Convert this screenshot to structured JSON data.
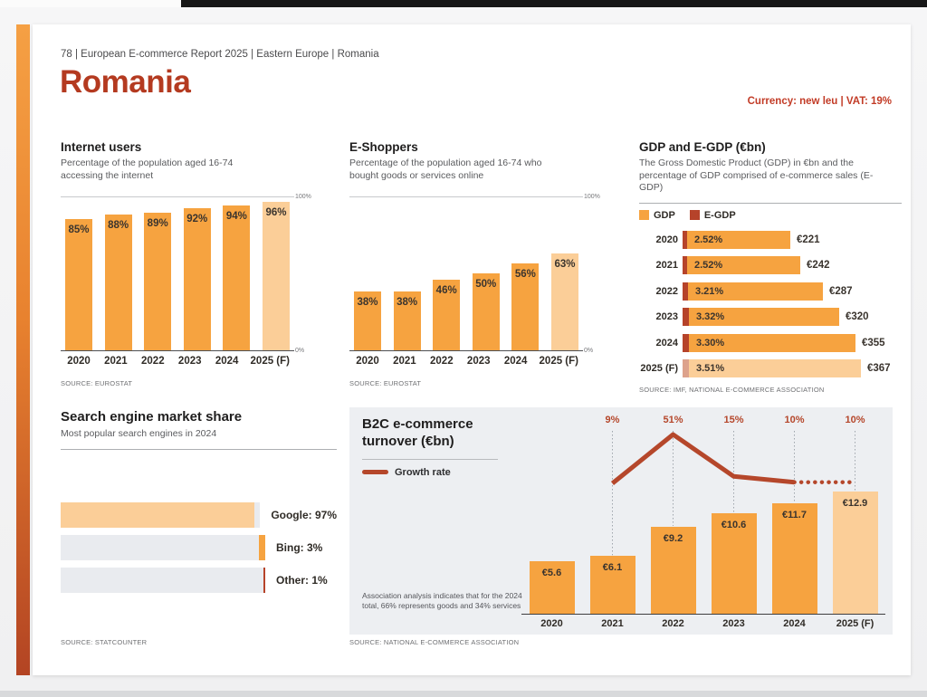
{
  "page": {
    "breadcrumb": "78 | European E-commerce Report 2025 | Eastern Europe | Romania",
    "title": "Romania",
    "currency_vat": "Currency: new leu | VAT: 19%"
  },
  "colors": {
    "orange": "#F6A340",
    "orange_forecast": "#FBCE98",
    "brick_red": "#B6432A",
    "brick_red_forecast": "#DDA28C",
    "growth_line": "#B5472B",
    "gray_track": "#E9EBEF",
    "panel_bg": "#EDEFF2",
    "title_red": "#B43A20"
  },
  "chart_data": [
    {
      "id": "internet_users",
      "type": "bar",
      "title": "Internet users",
      "subtitle": "Percentage of the population aged 16-74 accessing the internet",
      "categories": [
        "2020",
        "2021",
        "2022",
        "2023",
        "2024",
        "2025 (F)"
      ],
      "values": [
        85,
        88,
        89,
        92,
        94,
        96
      ],
      "value_labels": [
        "85%",
        "88%",
        "89%",
        "92%",
        "94%",
        "96%"
      ],
      "ylim": [
        0,
        100
      ],
      "axis_top_label": "100%",
      "axis_bottom_label": "0%",
      "forecast_last_bar": true,
      "source": "SOURCE: EUROSTAT"
    },
    {
      "id": "e_shoppers",
      "type": "bar",
      "title": "E-Shoppers",
      "subtitle": "Percentage of the population aged 16-74 who bought goods or services online",
      "categories": [
        "2020",
        "2021",
        "2022",
        "2023",
        "2024",
        "2025 (F)"
      ],
      "values": [
        38,
        38,
        46,
        50,
        56,
        63
      ],
      "value_labels": [
        "38%",
        "38%",
        "46%",
        "50%",
        "56%",
        "63%"
      ],
      "ylim": [
        0,
        100
      ],
      "axis_top_label": "100%",
      "axis_bottom_label": "0%",
      "forecast_last_bar": true,
      "source": "SOURCE: EUROSTAT"
    },
    {
      "id": "gdp_egdp",
      "type": "bar-horizontal",
      "title": "GDP and E-GDP (€bn)",
      "subtitle": "The Gross Domestic Product (GDP) in €bn and the percentage of GDP comprised of e-commerce sales (E-GDP)",
      "legend": [
        "GDP",
        "E-GDP"
      ],
      "xmax": 367,
      "rows": [
        {
          "year": "2020",
          "egdp_pct": "2.52%",
          "gdp_value": 221,
          "gdp_label": "€221",
          "forecast": false
        },
        {
          "year": "2021",
          "egdp_pct": "2.52%",
          "gdp_value": 242,
          "gdp_label": "€242",
          "forecast": false
        },
        {
          "year": "2022",
          "egdp_pct": "3.21%",
          "gdp_value": 287,
          "gdp_label": "€287",
          "forecast": false
        },
        {
          "year": "2023",
          "egdp_pct": "3.32%",
          "gdp_value": 320,
          "gdp_label": "€320",
          "forecast": false
        },
        {
          "year": "2024",
          "egdp_pct": "3.30%",
          "gdp_value": 355,
          "gdp_label": "€355",
          "forecast": false
        },
        {
          "year": "2025 (F)",
          "egdp_pct": "3.51%",
          "gdp_value": 367,
          "gdp_label": "€367",
          "forecast": true
        }
      ],
      "source": "SOURCE: IMF, NATIONAL E-COMMERCE ASSOCIATION"
    },
    {
      "id": "search_engine_share",
      "type": "bar-horizontal",
      "title": "Search engine market share",
      "subtitle": "Most popular search engines in 2024",
      "rows": [
        {
          "label": "Google: 97%",
          "value": 97,
          "segment": "light-orange",
          "side": "left"
        },
        {
          "label": "Bing: 3%",
          "value": 3,
          "segment": "orange",
          "side": "right"
        },
        {
          "label": "Other: 1%",
          "value": 1,
          "segment": "red",
          "side": "right"
        }
      ],
      "source": "SOURCE: STATCOUNTER"
    },
    {
      "id": "b2c_turnover",
      "type": "bar+line",
      "title": "B2C e-commerce turnover (€bn)",
      "legend": "Growth rate",
      "categories": [
        "2020",
        "2021",
        "2022",
        "2023",
        "2024",
        "2025 (F)"
      ],
      "bar_values": [
        5.6,
        6.1,
        9.2,
        10.6,
        11.7,
        12.9
      ],
      "bar_labels": [
        "€5.6",
        "€6.1",
        "€9.2",
        "€10.6",
        "€11.7",
        "€12.9"
      ],
      "growth_values": [
        9,
        51,
        15,
        10,
        10
      ],
      "growth_labels": [
        "9%",
        "51%",
        "15%",
        "10%",
        "10%"
      ],
      "growth_starts_at": "2021",
      "forecast_last_bar": true,
      "footnote": "Association analysis indicates that for the 2024 total, 66% represents goods and 34% services",
      "source": "SOURCE: NATIONAL E-COMMERCE ASSOCIATION"
    }
  ]
}
